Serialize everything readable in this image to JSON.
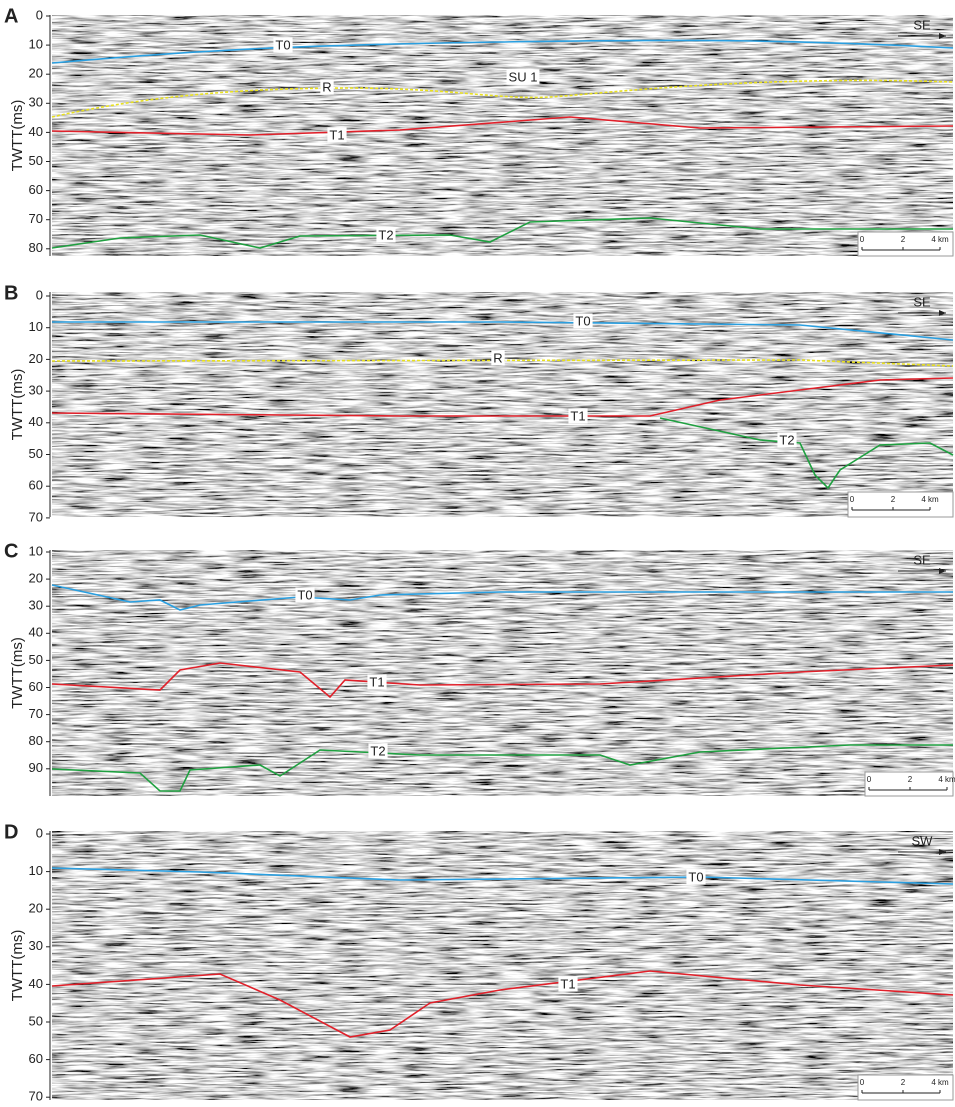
{
  "panels": [
    {
      "label": "A",
      "y_label": "TWTT(ms)",
      "yticks": [
        0,
        10,
        20,
        30,
        40,
        50,
        60,
        70,
        80
      ],
      "direction": "SE",
      "horizons": [
        "T0",
        "R",
        "SU 1",
        "T1",
        "T2"
      ],
      "scale_bar": [
        "0",
        "2",
        "4 km"
      ]
    },
    {
      "label": "B",
      "y_label": "TWTT(ms)",
      "yticks": [
        0,
        10,
        20,
        30,
        40,
        50,
        60,
        70
      ],
      "direction": "SE",
      "horizons": [
        "T0",
        "R",
        "T1",
        "T2"
      ],
      "scale_bar": [
        "0",
        "2",
        "4 km"
      ]
    },
    {
      "label": "C",
      "y_label": "TWTT(ms)",
      "yticks": [
        10,
        20,
        30,
        40,
        50,
        60,
        70,
        80,
        90
      ],
      "direction": "SE",
      "horizons": [
        "T0",
        "T1",
        "T2"
      ],
      "scale_bar": [
        "0",
        "2",
        "4 km"
      ]
    },
    {
      "label": "D",
      "y_label": "TWTT(ms)",
      "yticks": [
        0,
        10,
        20,
        30,
        40,
        50,
        60,
        70
      ],
      "direction": "SW",
      "horizons": [
        "T0",
        "T1"
      ],
      "scale_bar": [
        "0",
        "2",
        "4 km"
      ]
    }
  ]
}
